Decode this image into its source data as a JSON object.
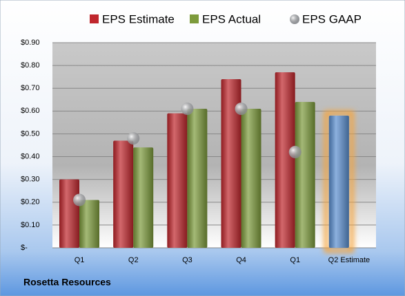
{
  "chart_data": {
    "type": "bar",
    "title": "Rosetta Resources",
    "categories": [
      "Q1",
      "Q2",
      "Q3",
      "Q4",
      "Q1",
      "Q2 Estimate"
    ],
    "series": [
      {
        "name": "EPS Estimate",
        "color": "#c0272d",
        "bar_colors": [
          "#c0272d",
          "#c0272d",
          "#c0272d",
          "#c0272d",
          "#c0272d",
          "#5b8fd0"
        ],
        "values": [
          0.3,
          0.47,
          0.59,
          0.74,
          0.77,
          0.58
        ]
      },
      {
        "name": "EPS Actual",
        "color": "#7d9b3c",
        "values": [
          0.21,
          0.44,
          0.61,
          0.61,
          0.64,
          null
        ]
      },
      {
        "name": "EPS GAAP",
        "color": "#a6aab0",
        "marker": "circle",
        "values": [
          0.21,
          0.48,
          0.61,
          0.61,
          0.42,
          null
        ]
      }
    ],
    "highlight_color": "#f6a53c",
    "ylim": [
      0,
      0.9
    ],
    "yticks": [
      {
        "value": 0,
        "label": "$-"
      },
      {
        "value": 0.1,
        "label": "$0.10"
      },
      {
        "value": 0.2,
        "label": "$0.20"
      },
      {
        "value": 0.3,
        "label": "$0.30"
      },
      {
        "value": 0.4,
        "label": "$0.40"
      },
      {
        "value": 0.5,
        "label": "$0.50"
      },
      {
        "value": 0.6,
        "label": "$0.60"
      },
      {
        "value": 0.7,
        "label": "$0.70"
      },
      {
        "value": 0.8,
        "label": "$0.80"
      },
      {
        "value": 0.9,
        "label": "$0.90"
      }
    ],
    "grid": true,
    "legend": "top"
  }
}
